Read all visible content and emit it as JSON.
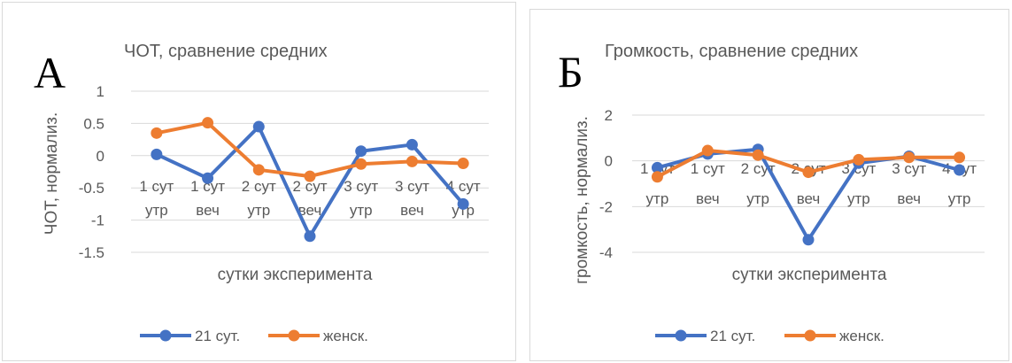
{
  "chart_data": [
    {
      "type": "line",
      "panel_label": "А",
      "title": "ЧОТ, сравнение средних",
      "xlabel": "сутки эксперимента",
      "ylabel": "ЧОТ, нормализ.",
      "ylim": [
        -1.5,
        1
      ],
      "ytick_step": 0.5,
      "yticks": [
        "1",
        "0.5",
        "0",
        "-0.5",
        "-1",
        "-1.5"
      ],
      "categories": [
        [
          "1 сут",
          "утр"
        ],
        [
          "1 сут",
          "веч"
        ],
        [
          "2 сут",
          "утр"
        ],
        [
          "2 сут",
          "веч"
        ],
        [
          "3 сут",
          "утр"
        ],
        [
          "3 сут",
          "веч"
        ],
        [
          "4 сут",
          "утр"
        ]
      ],
      "grid": true,
      "legend": "bottom",
      "series": [
        {
          "name": "21 сут.",
          "color": "#4472c4",
          "values": [
            0.02,
            -0.35,
            0.45,
            -1.25,
            0.07,
            0.17,
            -0.75
          ]
        },
        {
          "name": "женск.",
          "color": "#ed7d31",
          "values": [
            0.35,
            0.51,
            -0.22,
            -0.32,
            -0.13,
            -0.09,
            -0.12
          ]
        }
      ]
    },
    {
      "type": "line",
      "panel_label": "Б",
      "title": "Громкость, сравнение средних",
      "xlabel": "сутки эксперимента",
      "ylabel": "громкость, нормализ.",
      "ylim": [
        -4,
        2
      ],
      "ytick_step": 2,
      "yticks": [
        "2",
        "0",
        "-2",
        "-4"
      ],
      "categories": [
        [
          "1 сут",
          "утр"
        ],
        [
          "1 сут",
          "веч"
        ],
        [
          "2 сут",
          "утр"
        ],
        [
          "2 сут",
          "веч"
        ],
        [
          "3 сут",
          "утр"
        ],
        [
          "3 сут",
          "веч"
        ],
        [
          "4 сут",
          "утр"
        ]
      ],
      "grid": true,
      "legend": "bottom",
      "series": [
        {
          "name": "21 сут.",
          "color": "#4472c4",
          "values": [
            -0.3,
            0.3,
            0.5,
            -3.45,
            -0.1,
            0.2,
            -0.4
          ]
        },
        {
          "name": "женск.",
          "color": "#ed7d31",
          "values": [
            -0.7,
            0.45,
            0.25,
            -0.5,
            0.05,
            0.15,
            0.15
          ]
        }
      ]
    }
  ]
}
